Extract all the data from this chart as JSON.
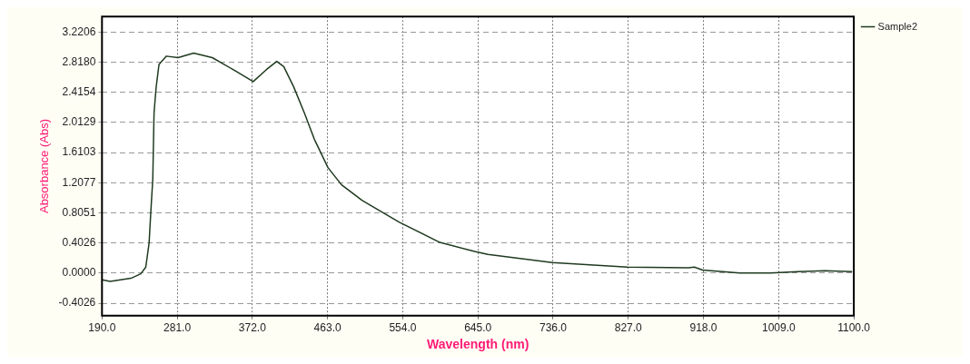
{
  "chart_data": {
    "type": "line",
    "xlabel": "Wavelength (nm)",
    "ylabel": "Absorbance (Abs)",
    "xlim": [
      190,
      1100
    ],
    "xticks": [
      {
        "value": 190,
        "label": "190.0"
      },
      {
        "value": 281,
        "label": "281.0"
      },
      {
        "value": 372,
        "label": "372.0"
      },
      {
        "value": 463,
        "label": "463.0"
      },
      {
        "value": 554,
        "label": "554.0"
      },
      {
        "value": 645,
        "label": "645.0"
      },
      {
        "value": 736,
        "label": "736.0"
      },
      {
        "value": 827,
        "label": "827.0"
      },
      {
        "value": 918,
        "label": "918.0"
      },
      {
        "value": 1009,
        "label": "1009.0"
      },
      {
        "value": 1100,
        "label": "1100.0"
      }
    ],
    "ylim": [
      -0.57,
      3.43
    ],
    "yticks": [
      {
        "value": -0.4026,
        "label": "-0.4026"
      },
      {
        "value": 0,
        "label": "0.0000"
      },
      {
        "value": 0.4026,
        "label": "0.4026"
      },
      {
        "value": 0.8051,
        "label": "0.8051"
      },
      {
        "value": 1.2077,
        "label": "1.2077"
      },
      {
        "value": 1.6103,
        "label": "1.6103"
      },
      {
        "value": 2.0129,
        "label": "2.0129"
      },
      {
        "value": 2.4154,
        "label": "2.4154"
      },
      {
        "value": 2.818,
        "label": "2.8180"
      },
      {
        "value": 3.2206,
        "label": "3.2206"
      }
    ],
    "grid": true,
    "legend": "top right",
    "marker": "none",
    "line_style": "solid",
    "series": [
      {
        "name": "Sample2",
        "color": "#1f3a1f",
        "x": [
          190,
          200,
          225,
          237,
          243,
          247,
          249,
          251.5,
          253,
          255.5,
          259,
          268,
          282,
          301,
          323.5,
          352,
          373,
          389,
          401.5,
          410,
          422,
          435,
          447,
          463.5,
          480,
          505,
          550,
          599,
          641,
          657,
          735,
          826,
          900,
          907,
          917,
          962,
          999,
          1032,
          1065,
          1098
        ],
        "values": [
          -0.09,
          -0.11,
          -0.07,
          -0.01,
          0.08,
          0.4,
          0.8,
          1.26,
          2.14,
          2.48,
          2.79,
          2.9,
          2.88,
          2.94,
          2.88,
          2.7,
          2.56,
          2.72,
          2.83,
          2.76,
          2.49,
          2.14,
          1.79,
          1.41,
          1.18,
          0.97,
          0.68,
          0.41,
          0.29,
          0.25,
          0.14,
          0.08,
          0.07,
          0.08,
          0.04,
          0,
          0,
          0.02,
          0.03,
          0.02
        ]
      }
    ]
  }
}
